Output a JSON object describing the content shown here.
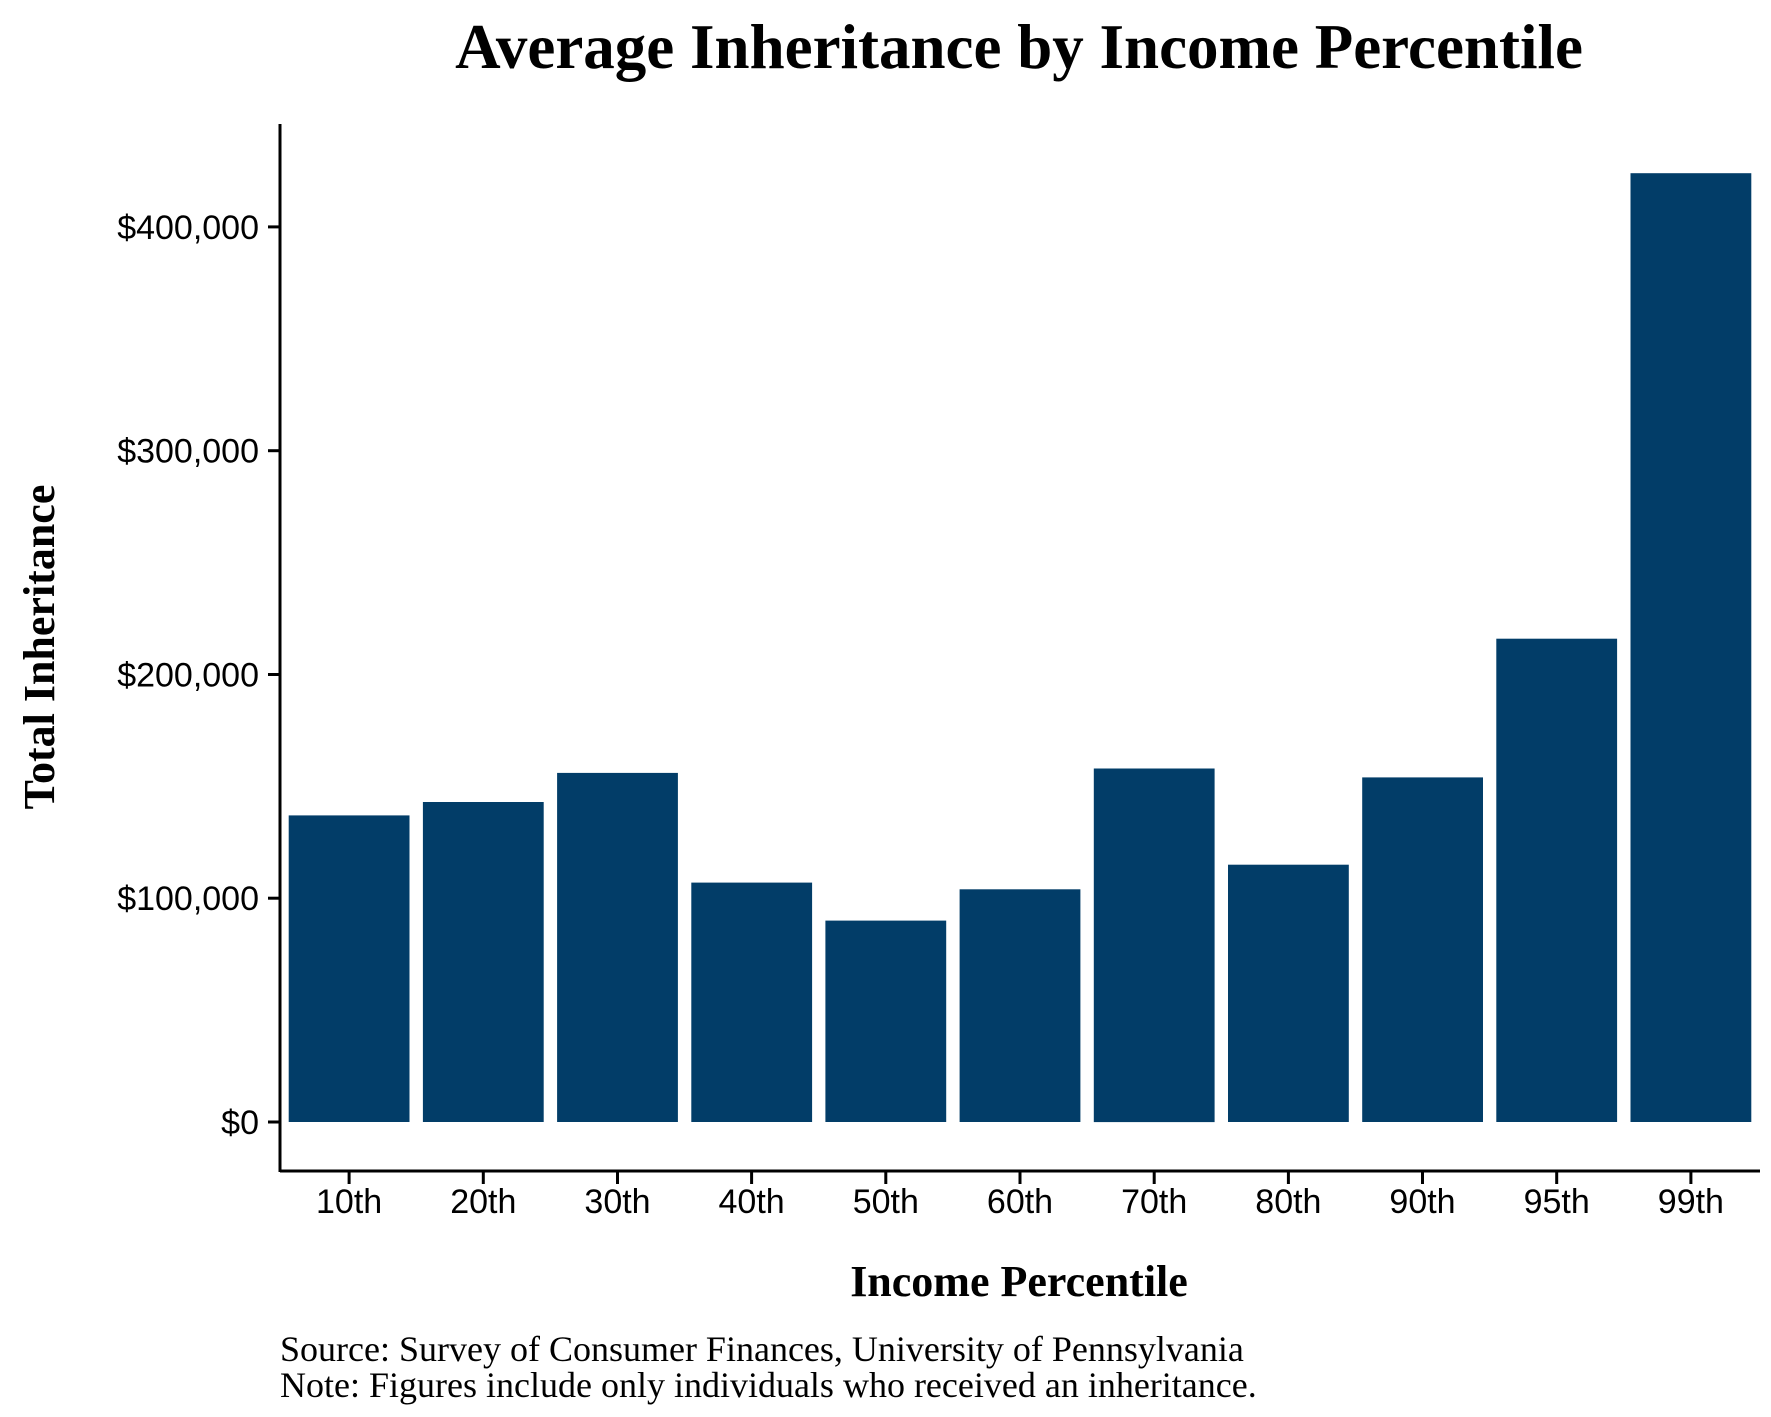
{
  "chart_data": {
    "type": "bar",
    "title": "Average Inheritance by Income Percentile",
    "xlabel": "Income Percentile",
    "ylabel": "Total Inheritance",
    "categories": [
      "10th",
      "20th",
      "30th",
      "40th",
      "50th",
      "60th",
      "70th",
      "80th",
      "90th",
      "95th",
      "99th"
    ],
    "values": [
      137000,
      143000,
      156000,
      107000,
      90000,
      104000,
      158000,
      115000,
      154000,
      216000,
      424000
    ],
    "ylim": [
      -21000,
      446000
    ],
    "yticks": [
      0,
      100000,
      200000,
      300000,
      400000
    ],
    "ytick_labels": [
      "$0",
      "$100,000",
      "$200,000",
      "$300,000",
      "$400,000"
    ],
    "bar_color": "#023d68",
    "grid": false,
    "legend": "none"
  },
  "notes": {
    "source": "Source: Survey of Consumer Finances, University of Pennsylvania",
    "note": "Note: Figures include only individuals who received an inheritance."
  }
}
